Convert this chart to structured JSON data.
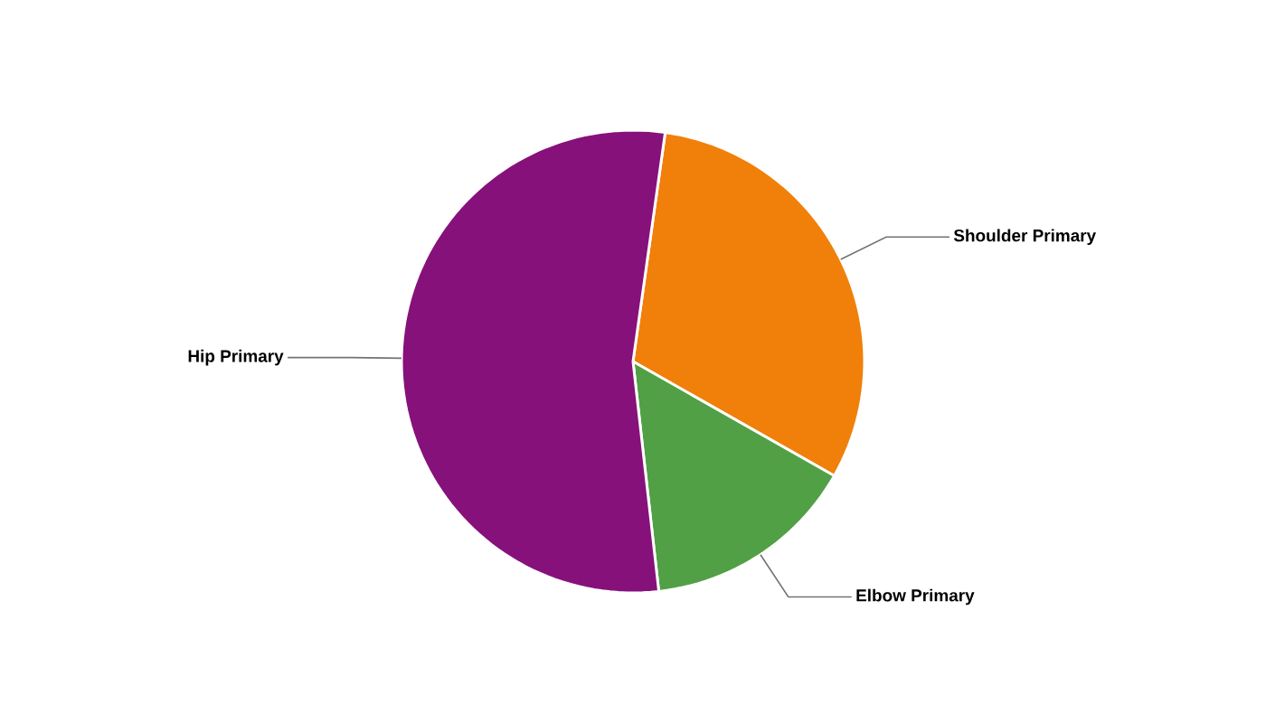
{
  "chart_data": {
    "type": "pie",
    "categories": [
      "Shoulder Primary",
      "Elbow Primary",
      "Hip Primary"
    ],
    "values": [
      31,
      15,
      54
    ],
    "colors": [
      "#f0800a",
      "#52a045",
      "#86117a"
    ]
  }
}
